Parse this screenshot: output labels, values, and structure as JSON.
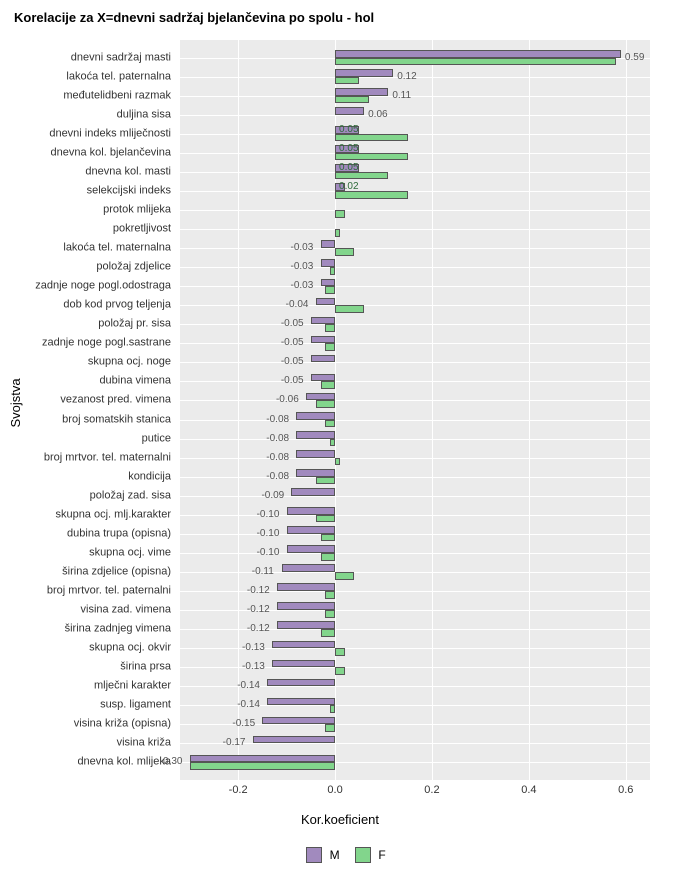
{
  "title": "Korelacije za X=dnevni sadržaj bjelančevina po spolu - hol",
  "ylab": "Svojstva",
  "xlab": "Kor.koeficient",
  "chart": {
    "type": "bar",
    "orientation": "horizontal",
    "grouped": true,
    "background_color": "#ebebeb",
    "grid_color": "#ffffff",
    "bar_border_color": "#555555",
    "colors": {
      "M": "#a18abe",
      "F": "#82d58c"
    },
    "xlim": [
      -0.32,
      0.65
    ],
    "xticks": [
      -0.2,
      0.0,
      0.2,
      0.4,
      0.6
    ],
    "xtick_labels": [
      "-0.2",
      "0.0",
      "0.2",
      "0.4",
      "0.6"
    ],
    "legend": [
      {
        "key": "M",
        "label": "M",
        "color": "#a18abe"
      },
      {
        "key": "F",
        "label": "F",
        "color": "#82d58c"
      }
    ],
    "items": [
      {
        "label": "dnevni sadržaj masti",
        "M": 0.59,
        "F": 0.58,
        "show": 0.59,
        "side": "pos"
      },
      {
        "label": "lakoća tel. paternalna",
        "M": 0.12,
        "F": 0.05,
        "show": 0.12,
        "side": "pos"
      },
      {
        "label": "međutelidbeni razmak",
        "M": 0.11,
        "F": 0.07,
        "show": 0.11,
        "side": "pos"
      },
      {
        "label": "duljina sisa",
        "M": 0.06,
        "F": null,
        "show": 0.06,
        "side": "pos"
      },
      {
        "label": "dnevni indeks mliječnosti",
        "M": 0.05,
        "F": 0.15,
        "show": 0.05,
        "side": "inbar"
      },
      {
        "label": "dnevna kol. bjelančevina",
        "M": 0.05,
        "F": 0.15,
        "show": 0.05,
        "side": "inbar"
      },
      {
        "label": "dnevna kol. masti",
        "M": 0.05,
        "F": 0.11,
        "show": 0.05,
        "side": "inbar"
      },
      {
        "label": "selekcijski indeks",
        "M": 0.02,
        "F": 0.15,
        "show": 0.02,
        "side": "inbar"
      },
      {
        "label": "protok mlijeka",
        "M": null,
        "F": 0.02,
        "show": null,
        "side": "pos"
      },
      {
        "label": "pokretljivost",
        "M": null,
        "F": 0.01,
        "show": null,
        "side": "pos"
      },
      {
        "label": "lakoća tel. maternalna",
        "M": -0.03,
        "F": 0.04,
        "show": -0.03,
        "side": "neg"
      },
      {
        "label": "položaj zdjelice",
        "M": -0.03,
        "F": -0.01,
        "show": -0.03,
        "side": "neg"
      },
      {
        "label": "zadnje noge pogl.odostraga",
        "M": -0.03,
        "F": -0.02,
        "show": -0.03,
        "side": "neg"
      },
      {
        "label": "dob kod prvog teljenja",
        "M": -0.04,
        "F": 0.06,
        "show": -0.04,
        "side": "neg"
      },
      {
        "label": "položaj pr. sisa",
        "M": -0.05,
        "F": -0.02,
        "show": -0.05,
        "side": "neg"
      },
      {
        "label": "zadnje noge pogl.sastrane",
        "M": -0.05,
        "F": -0.02,
        "show": -0.05,
        "side": "neg"
      },
      {
        "label": "skupna ocj. noge",
        "M": -0.05,
        "F": null,
        "show": -0.05,
        "side": "neg"
      },
      {
        "label": "dubina vimena",
        "M": -0.05,
        "F": -0.03,
        "show": -0.05,
        "side": "neg"
      },
      {
        "label": "vezanost pred. vimena",
        "M": -0.06,
        "F": -0.04,
        "show": -0.06,
        "side": "neg"
      },
      {
        "label": "broj somatskih stanica",
        "M": -0.08,
        "F": -0.02,
        "show": -0.08,
        "side": "neg"
      },
      {
        "label": "putice",
        "M": -0.08,
        "F": -0.01,
        "show": -0.08,
        "side": "neg"
      },
      {
        "label": "broj mrtvor. tel. maternalni",
        "M": -0.08,
        "F": 0.01,
        "show": -0.08,
        "side": "neg"
      },
      {
        "label": "kondicija",
        "M": -0.08,
        "F": -0.04,
        "show": -0.08,
        "side": "neg"
      },
      {
        "label": "položaj zad. sisa",
        "M": -0.09,
        "F": null,
        "show": -0.09,
        "side": "neg"
      },
      {
        "label": "skupna ocj. mlj.karakter",
        "M": -0.1,
        "F": -0.04,
        "show": -0.1,
        "side": "neg"
      },
      {
        "label": "dubina trupa (opisna)",
        "M": -0.1,
        "F": -0.03,
        "show": -0.1,
        "side": "neg"
      },
      {
        "label": "skupna ocj. vime",
        "M": -0.1,
        "F": -0.03,
        "show": -0.1,
        "side": "neg"
      },
      {
        "label": "širina zdjelice (opisna)",
        "M": -0.11,
        "F": 0.04,
        "show": -0.11,
        "side": "neg"
      },
      {
        "label": "broj mrtvor. tel. paternalni",
        "M": -0.12,
        "F": -0.02,
        "show": -0.12,
        "side": "neg"
      },
      {
        "label": "visina zad. vimena",
        "M": -0.12,
        "F": -0.02,
        "show": -0.12,
        "side": "neg"
      },
      {
        "label": "širina zadnjeg vimena",
        "M": -0.12,
        "F": -0.03,
        "show": -0.12,
        "side": "neg"
      },
      {
        "label": "skupna ocj. okvir",
        "M": -0.13,
        "F": 0.02,
        "show": -0.13,
        "side": "neg"
      },
      {
        "label": "širina prsa",
        "M": -0.13,
        "F": 0.02,
        "show": -0.13,
        "side": "neg"
      },
      {
        "label": "mlječni karakter",
        "M": -0.14,
        "F": null,
        "show": -0.14,
        "side": "neg"
      },
      {
        "label": "susp. ligament",
        "M": -0.14,
        "F": -0.01,
        "show": -0.14,
        "side": "neg"
      },
      {
        "label": "visina križa (opisna)",
        "M": -0.15,
        "F": -0.02,
        "show": -0.15,
        "side": "neg"
      },
      {
        "label": "visina križa",
        "M": -0.17,
        "F": null,
        "show": -0.17,
        "side": "neg"
      },
      {
        "label": "dnevna kol. mlijeka",
        "M": -0.3,
        "F": -0.3,
        "show": -0.3,
        "side": "neg"
      }
    ]
  }
}
